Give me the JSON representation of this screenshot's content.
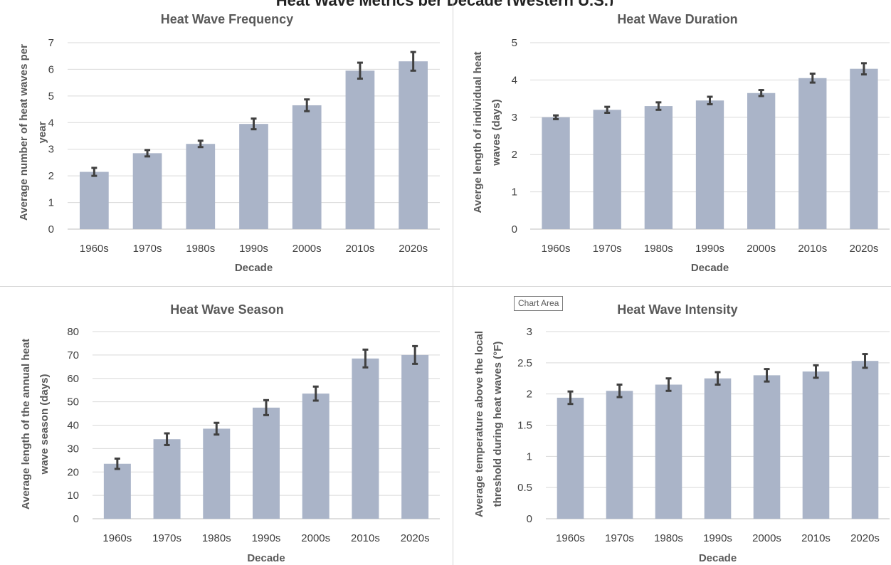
{
  "header": {
    "cut_text": "Heat Wave Metrics per Decade (Western U.S.)"
  },
  "tooltip": {
    "label": "Chart Area"
  },
  "colors": {
    "bar": "#aab4c8",
    "error_bar": "#404040",
    "grid": "#d9d9d9",
    "text": "#595959"
  },
  "chart_data": [
    {
      "type": "bar",
      "title": "Heat Wave Frequency",
      "xlabel": "Decade",
      "ylabel_lines": [
        "Average number of heat waves per",
        "year"
      ],
      "categories": [
        "1960s",
        "1970s",
        "1980s",
        "1990s",
        "2000s",
        "2010s",
        "2020s"
      ],
      "values": [
        2.15,
        2.85,
        3.2,
        3.95,
        4.65,
        5.95,
        6.3
      ],
      "errors": [
        0.15,
        0.12,
        0.12,
        0.2,
        0.22,
        0.3,
        0.35
      ],
      "ylim": [
        0,
        7
      ],
      "yticks": [
        0,
        1,
        2,
        3,
        4,
        5,
        6,
        7
      ],
      "grid": true,
      "legend": "none"
    },
    {
      "type": "bar",
      "title": "Heat Wave Duration",
      "xlabel": "Decade",
      "ylabel_lines": [
        "Averge length of individual heat",
        "waves (days)"
      ],
      "categories": [
        "1960s",
        "1970s",
        "1980s",
        "1990s",
        "2000s",
        "2010s",
        "2020s"
      ],
      "values": [
        3.0,
        3.2,
        3.3,
        3.45,
        3.65,
        4.05,
        4.3
      ],
      "errors": [
        0.05,
        0.08,
        0.1,
        0.1,
        0.08,
        0.12,
        0.15
      ],
      "ylim": [
        0,
        5
      ],
      "yticks": [
        0,
        1,
        2,
        3,
        4,
        5
      ],
      "grid": true,
      "legend": "none"
    },
    {
      "type": "bar",
      "title": "Heat Wave Season",
      "xlabel": "Decade",
      "ylabel_lines": [
        "Average length of the annual heat",
        "wave season (days)"
      ],
      "categories": [
        "1960s",
        "1970s",
        "1980s",
        "1990s",
        "2000s",
        "2010s",
        "2020s"
      ],
      "values": [
        23.5,
        34,
        38.5,
        47.5,
        53.5,
        68.5,
        70
      ],
      "errors": [
        2.2,
        2.5,
        2.5,
        3.2,
        3,
        3.8,
        3.8
      ],
      "ylim": [
        0,
        80
      ],
      "yticks": [
        0,
        10,
        20,
        30,
        40,
        50,
        60,
        70,
        80
      ],
      "grid": true,
      "legend": "none"
    },
    {
      "type": "bar",
      "title": "Heat Wave Intensity",
      "xlabel": "Decade",
      "ylabel_lines": [
        "Average temperature above the local",
        "threshold during heat waves (°F)"
      ],
      "categories": [
        "1960s",
        "1970s",
        "1980s",
        "1990s",
        "2000s",
        "2010s",
        "2020s"
      ],
      "values": [
        1.94,
        2.05,
        2.15,
        2.25,
        2.3,
        2.36,
        2.53
      ],
      "errors": [
        0.1,
        0.1,
        0.1,
        0.1,
        0.1,
        0.1,
        0.11
      ],
      "ylim": [
        0,
        3
      ],
      "yticks": [
        0,
        0.5,
        1,
        1.5,
        2,
        2.5,
        3
      ],
      "grid": true,
      "legend": "none"
    }
  ]
}
